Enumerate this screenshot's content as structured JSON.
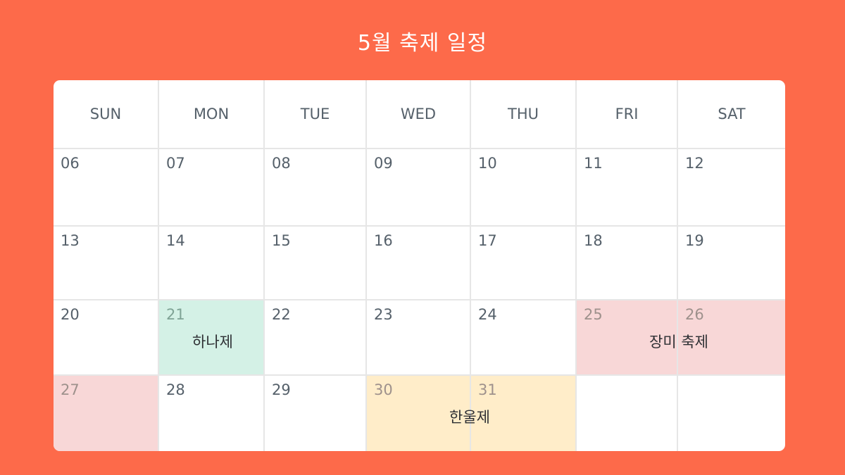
{
  "title": "5월 축제 일정",
  "weekdays": [
    "SUN",
    "MON",
    "TUE",
    "WED",
    "THU",
    "FRI",
    "SAT"
  ],
  "weeks": [
    [
      "06",
      "07",
      "08",
      "09",
      "10",
      "11",
      "12"
    ],
    [
      "13",
      "14",
      "15",
      "16",
      "17",
      "18",
      "19"
    ],
    [
      "20",
      "21",
      "22",
      "23",
      "24",
      "25",
      "26"
    ],
    [
      "27",
      "28",
      "29",
      "30",
      "31",
      "",
      ""
    ]
  ],
  "events": [
    {
      "name": "하나제",
      "color": "#D4F1E6",
      "start": "21",
      "end": "21"
    },
    {
      "name": "장미 축제",
      "color": "#F8D7D7",
      "start": "25",
      "end": "27"
    },
    {
      "name": "한울제",
      "color": "#FFEDC9",
      "start": "30",
      "end": "31"
    }
  ],
  "colors": {
    "background": "#FD6A4A",
    "card": "#FFFFFF",
    "text": "#55606A"
  }
}
